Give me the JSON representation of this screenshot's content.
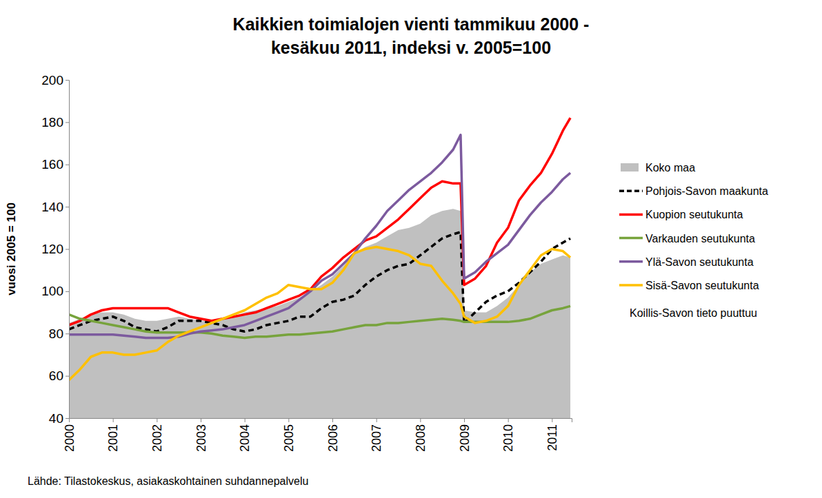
{
  "chart_data": {
    "type": "line",
    "title": [
      "Kaikkien toimialojen vienti tammikuu 2000 -",
      "kesäkuu 2011, indeksi v. 2005=100"
    ],
    "y_label": "vuosi 2005 = 100",
    "source": "Lähde: Tilastokeskus, asiakaskohtainen suhdannepalvelu",
    "annotation": "Koillis-Savon tieto puuttuu",
    "x": [
      2000,
      2000.25,
      2000.5,
      2000.75,
      2001,
      2001.25,
      2001.5,
      2001.75,
      2002,
      2002.25,
      2002.5,
      2002.75,
      2003,
      2003.25,
      2003.5,
      2003.75,
      2004,
      2004.25,
      2004.5,
      2004.75,
      2005,
      2005.25,
      2005.5,
      2005.75,
      2006,
      2006.25,
      2006.5,
      2006.75,
      2007,
      2007.25,
      2007.5,
      2007.75,
      2008,
      2008.25,
      2008.5,
      2008.75,
      2008.92,
      2009,
      2009.25,
      2009.5,
      2009.75,
      2010,
      2010.25,
      2010.5,
      2010.75,
      2011,
      2011.25,
      2011.42
    ],
    "xlim": [
      2000,
      2011.45
    ],
    "xticks": [
      2000,
      2001,
      2002,
      2003,
      2004,
      2005,
      2006,
      2007,
      2008,
      2009,
      2010,
      2011
    ],
    "ylim": [
      40,
      200
    ],
    "yticks": [
      40,
      60,
      80,
      100,
      120,
      140,
      160,
      180,
      200
    ],
    "grid": false,
    "legend": "right",
    "series": [
      {
        "name": "Koko maa",
        "type": "area",
        "color": "#c0c0c0",
        "values": [
          85,
          87,
          89,
          90,
          90,
          89,
          87,
          86,
          86,
          87,
          88,
          87,
          86,
          86,
          87,
          88,
          90,
          91,
          92,
          93,
          95,
          97,
          100,
          103,
          107,
          112,
          118,
          121,
          123,
          126,
          129,
          130,
          132,
          136,
          138,
          139,
          138,
          91,
          90,
          90,
          93,
          97,
          103,
          109,
          113,
          115,
          117,
          116
        ]
      },
      {
        "name": "Pohjois-Savon maakunta",
        "type": "line",
        "color": "#000000",
        "line_style": "dashed",
        "values": [
          82,
          84,
          86,
          87,
          88,
          86,
          83,
          82,
          81,
          83,
          86,
          86,
          86,
          85,
          84,
          82,
          81,
          82,
          84,
          85,
          86,
          88,
          88,
          92,
          95,
          96,
          98,
          103,
          107,
          110,
          112,
          113,
          117,
          121,
          125,
          127,
          128,
          85,
          90,
          95,
          98,
          100,
          104,
          109,
          114,
          120,
          123,
          125
        ]
      },
      {
        "name": "Kuopion seutukunta",
        "type": "line",
        "color": "#ff0000",
        "line_style": "solid",
        "values": [
          84,
          86,
          89,
          91,
          92,
          92,
          92,
          92,
          92,
          92,
          90,
          88,
          87,
          86,
          87,
          88,
          89,
          90,
          92,
          94,
          96,
          98,
          101,
          107,
          111,
          116,
          120,
          124,
          126,
          130,
          134,
          139,
          144,
          149,
          152,
          151,
          151,
          103,
          106,
          112,
          123,
          130,
          143,
          150,
          156,
          165,
          176,
          182
        ]
      },
      {
        "name": "Varkauden seutukunta",
        "type": "line",
        "color": "#77a33c",
        "line_style": "solid",
        "values": [
          89,
          87,
          86,
          85,
          84,
          83,
          82,
          81,
          80.5,
          80.5,
          80.5,
          80.5,
          80.5,
          80,
          79,
          78.5,
          78,
          78.5,
          78.5,
          79,
          79.5,
          79.5,
          80,
          80.5,
          81,
          82,
          83,
          84,
          84,
          85,
          85,
          85.5,
          86,
          86.5,
          87,
          86.5,
          86,
          85.5,
          85.5,
          85.5,
          85.5,
          85.5,
          86,
          87,
          89,
          91,
          92,
          93
        ]
      },
      {
        "name": "Ylä-Savon seutukunta",
        "type": "line",
        "color": "#7c5a9e",
        "line_style": "solid",
        "values": [
          79.5,
          79.5,
          79.5,
          79.5,
          79.5,
          79,
          78.5,
          78,
          78,
          78,
          78.5,
          80,
          81,
          81.5,
          82,
          83,
          84,
          86,
          88,
          90,
          92,
          96,
          100,
          105,
          108,
          113,
          118,
          125,
          131,
          138,
          143,
          148,
          152,
          156,
          161,
          167,
          174,
          106,
          109,
          114,
          118,
          122,
          129,
          136,
          142,
          147,
          153,
          156
        ]
      },
      {
        "name": "Sisä-Savon seutukunta",
        "type": "line",
        "color": "#ffc000",
        "line_style": "solid",
        "values": [
          58,
          63,
          69,
          71,
          71,
          70,
          70,
          71,
          72,
          76,
          79,
          81,
          83,
          85,
          87,
          89,
          91,
          94,
          97,
          99,
          103,
          102,
          101,
          101,
          104,
          110,
          118,
          120,
          121,
          120,
          119,
          117,
          113,
          112,
          105,
          99,
          94,
          88,
          85,
          86,
          88,
          93,
          103,
          110,
          117,
          120,
          119,
          116
        ]
      }
    ]
  }
}
